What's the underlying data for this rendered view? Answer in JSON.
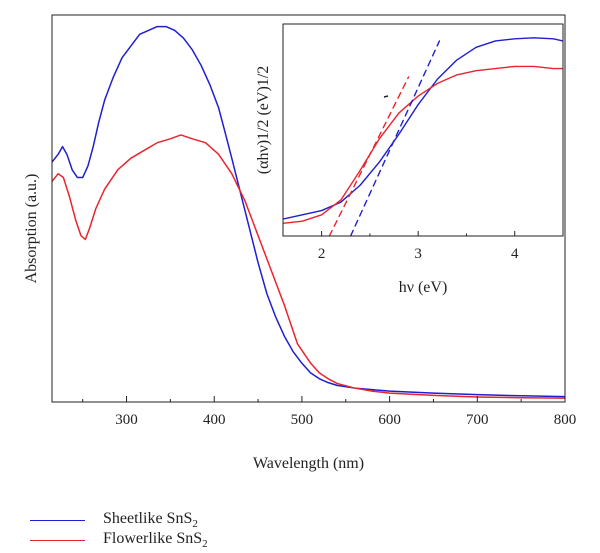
{
  "chart_data": [
    {
      "type": "line",
      "title": "",
      "xlabel": "Wavelength (nm)",
      "ylabel": "Absorption (a.u.)",
      "xlim": [
        215,
        800
      ],
      "ylim": [
        0,
        1.0
      ],
      "x_ticks": [
        300,
        400,
        500,
        600,
        700,
        800
      ],
      "y_ticks": [],
      "grid": false,
      "legend_position": "below-left",
      "series": [
        {
          "name": "Sheetlike SnS2",
          "color": "#1f1fcf",
          "x": [
            215,
            222,
            227,
            232,
            238,
            244,
            250,
            256,
            262,
            268,
            275,
            285,
            295,
            305,
            315,
            325,
            335,
            345,
            355,
            365,
            375,
            385,
            395,
            405,
            412,
            420,
            430,
            440,
            450,
            460,
            470,
            480,
            490,
            500,
            510,
            520,
            530,
            540,
            560,
            580,
            600,
            650,
            700,
            750,
            800
          ],
          "y": [
            0.62,
            0.64,
            0.66,
            0.64,
            0.6,
            0.58,
            0.58,
            0.61,
            0.66,
            0.72,
            0.78,
            0.84,
            0.89,
            0.92,
            0.95,
            0.96,
            0.97,
            0.97,
            0.96,
            0.94,
            0.91,
            0.87,
            0.82,
            0.76,
            0.7,
            0.63,
            0.54,
            0.45,
            0.36,
            0.28,
            0.22,
            0.17,
            0.13,
            0.1,
            0.075,
            0.06,
            0.05,
            0.043,
            0.036,
            0.032,
            0.028,
            0.023,
            0.019,
            0.016,
            0.014
          ]
        },
        {
          "name": "Flowerlike SnS2",
          "color": "#e8252e",
          "x": [
            215,
            222,
            228,
            235,
            242,
            248,
            253,
            258,
            265,
            275,
            290,
            305,
            320,
            335,
            350,
            362,
            375,
            390,
            405,
            420,
            435,
            450,
            465,
            480,
            495,
            510,
            520,
            530,
            540,
            560,
            580,
            600,
            650,
            700,
            750,
            800
          ],
          "y": [
            0.57,
            0.59,
            0.58,
            0.53,
            0.47,
            0.43,
            0.42,
            0.45,
            0.5,
            0.55,
            0.6,
            0.63,
            0.65,
            0.67,
            0.68,
            0.69,
            0.68,
            0.67,
            0.64,
            0.59,
            0.52,
            0.43,
            0.34,
            0.25,
            0.15,
            0.1,
            0.075,
            0.06,
            0.048,
            0.036,
            0.028,
            0.023,
            0.017,
            0.013,
            0.011,
            0.01
          ]
        }
      ]
    },
    {
      "type": "line",
      "title": "",
      "xlabel": "hν (eV)",
      "ylabel": "(αhν)1/2 (eV)1/2",
      "xlim": [
        1.6,
        4.5
      ],
      "ylim": [
        0,
        1.0
      ],
      "x_ticks": [
        2,
        3,
        4
      ],
      "y_ticks": [],
      "grid": false,
      "series": [
        {
          "name": "",
          "color": "#1f1fcf",
          "x": [
            1.6,
            1.8,
            2.0,
            2.2,
            2.4,
            2.6,
            2.8,
            3.0,
            3.2,
            3.4,
            3.6,
            3.8,
            4.0,
            4.2,
            4.4,
            4.5
          ],
          "y": [
            0.08,
            0.1,
            0.12,
            0.16,
            0.24,
            0.35,
            0.48,
            0.62,
            0.74,
            0.83,
            0.89,
            0.92,
            0.93,
            0.935,
            0.93,
            0.92
          ]
        },
        {
          "name": "",
          "color": "#e8252e",
          "x": [
            1.6,
            1.8,
            2.0,
            2.2,
            2.4,
            2.6,
            2.8,
            3.0,
            3.2,
            3.4,
            3.6,
            3.8,
            4.0,
            4.2,
            4.4,
            4.5
          ],
          "y": [
            0.06,
            0.07,
            0.1,
            0.17,
            0.31,
            0.46,
            0.58,
            0.66,
            0.72,
            0.76,
            0.78,
            0.79,
            0.8,
            0.8,
            0.79,
            0.79
          ]
        },
        {
          "name": "",
          "color": "#1f1fcf",
          "dashed": true,
          "x": [
            2.3,
            3.22
          ],
          "y": [
            0.0,
            0.92
          ]
        },
        {
          "name": "",
          "color": "#e8252e",
          "dashed": true,
          "x": [
            2.08,
            2.9
          ],
          "y": [
            0.0,
            0.75
          ]
        }
      ]
    }
  ],
  "legend": {
    "items": [
      {
        "text": "Sheetlike SnS",
        "sub": "2",
        "color": "#1f1fcf"
      },
      {
        "text": "Flowerlike SnS",
        "sub": "2",
        "color": "#e8252e"
      }
    ]
  }
}
